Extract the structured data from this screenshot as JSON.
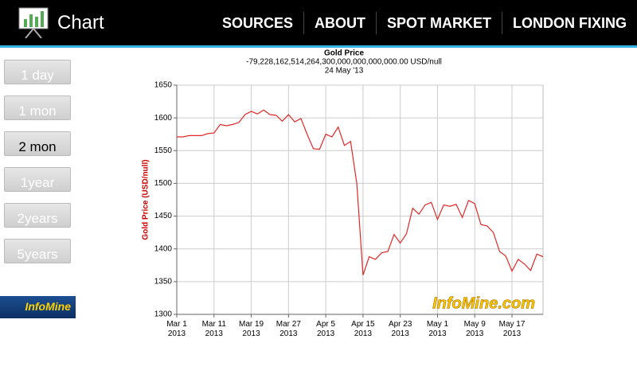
{
  "app_bar": {
    "title": "Chart",
    "nav": [
      "SOURCES",
      "ABOUT",
      "SPOT MARKET",
      "LONDON FIXING"
    ]
  },
  "range_buttons": [
    "1 day",
    "1 mon",
    "2 mon",
    "1year",
    "2years",
    "5years"
  ],
  "logo": "InfoMine",
  "chart_data": {
    "type": "line",
    "title": "Gold Price",
    "subtitle": "-79,228,162,514,264,300,000,000,000,000.00 USD/null",
    "date": "24 May '13",
    "y_label": "Gold Price (USD/null)",
    "watermark": "InfoMine.com",
    "categories": [
      "Mar 1\n2013",
      null,
      null,
      null,
      null,
      null,
      "Mar 11\n2013",
      null,
      null,
      null,
      null,
      null,
      "Mar 19\n2013",
      null,
      null,
      null,
      null,
      null,
      "Mar 27\n2013",
      null,
      null,
      null,
      null,
      null,
      "Apr 5\n2013",
      null,
      null,
      null,
      null,
      null,
      "Apr 15\n2013",
      null,
      null,
      null,
      null,
      null,
      "Apr 23\n2013",
      null,
      null,
      null,
      null,
      null,
      "May 1\n2013",
      null,
      null,
      null,
      null,
      null,
      "May 9\n2013",
      null,
      null,
      null,
      null,
      null,
      "May 17\n2013",
      null,
      null,
      null,
      null,
      null
    ],
    "series": [
      {
        "name": "Gold Price",
        "color": "#e02828",
        "values": [
          1571,
          1571,
          1573,
          1573,
          1573,
          1576,
          1577,
          1590,
          1588,
          1590,
          1593,
          1605,
          1610,
          1606,
          1612,
          1605,
          1604,
          1595,
          1605,
          1594,
          1599,
          1575,
          1553,
          1552,
          1575,
          1571,
          1586,
          1558,
          1564,
          1500,
          1360,
          1388,
          1384,
          1394,
          1396,
          1422,
          1409,
          1423,
          1462,
          1453,
          1467,
          1471,
          1445,
          1467,
          1465,
          1468,
          1448,
          1474,
          1469,
          1437,
          1435,
          1425,
          1396,
          1389,
          1366,
          1384,
          1377,
          1367,
          1392,
          1388
        ]
      }
    ],
    "ylim": [
      1300,
      1650
    ],
    "yticks": [
      1300,
      1350,
      1400,
      1450,
      1500,
      1550,
      1600,
      1650
    ],
    "grid": true
  }
}
